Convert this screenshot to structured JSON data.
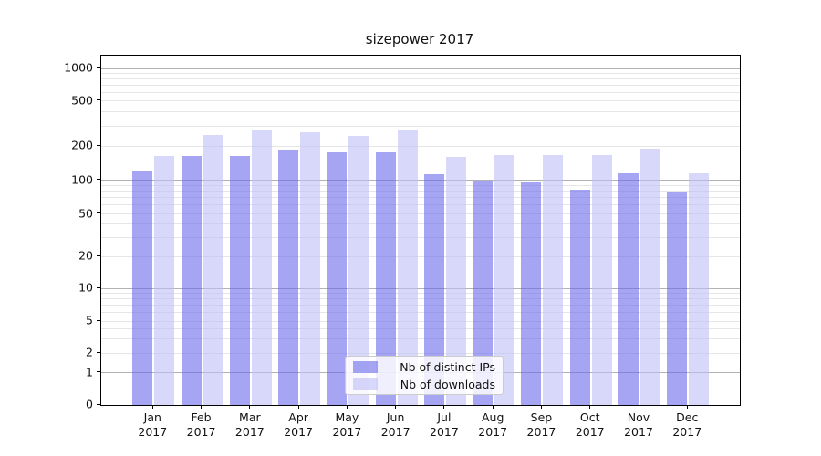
{
  "chart_data": {
    "type": "bar",
    "title": "sizepower 2017",
    "categories": [
      "Jan 2017",
      "Feb 2017",
      "Mar 2017",
      "Apr 2017",
      "May 2017",
      "Jun 2017",
      "Jul 2017",
      "Aug 2017",
      "Sep 2017",
      "Oct 2017",
      "Nov 2017",
      "Dec 2017"
    ],
    "series": [
      {
        "name": "Nb of distinct IPs",
        "color": "#a5a5f0",
        "values": [
          120,
          162,
          162,
          183,
          177,
          177,
          113,
          97,
          95,
          82,
          116,
          78
        ]
      },
      {
        "name": "Nb of downloads",
        "color": "#dcdcfa",
        "values": [
          162,
          250,
          275,
          265,
          245,
          272,
          160,
          165,
          165,
          166,
          190,
          115
        ]
      }
    ],
    "xlabel": "",
    "ylabel": "",
    "y_scale": "symlog",
    "y_ticks": [
      0,
      1,
      2,
      5,
      10,
      20,
      50,
      100,
      200,
      500,
      1000
    ],
    "ylim": [
      0,
      1300
    ],
    "grid": "horizontal major+minor",
    "legend_position": "lower center",
    "colors": {
      "bar_dark": "#a5a5f0",
      "bar_light": "#dcdcfa",
      "major_grid": "#b2b2b2",
      "minor_grid": "#e6e6e6",
      "axis": "#000000"
    }
  }
}
